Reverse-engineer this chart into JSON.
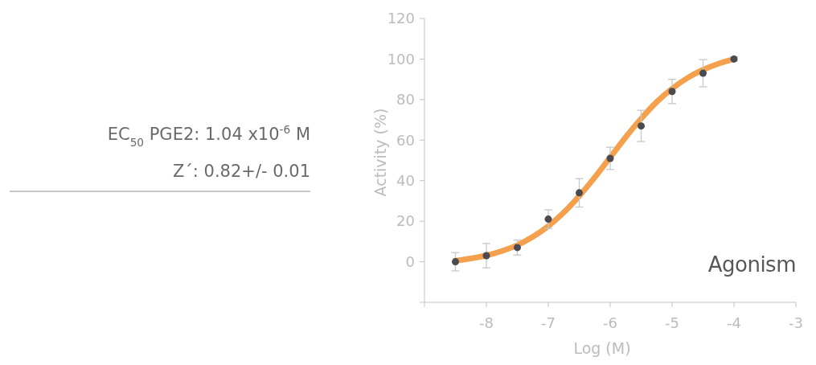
{
  "chart_data": {
    "type": "scatter",
    "xlabel": "Log (M)",
    "ylabel": "Activity (%)",
    "xlim": [
      -9,
      -3
    ],
    "xticks": [
      {
        "value": -9,
        "label": null
      },
      -8,
      -7,
      -6,
      -5,
      -4,
      -3
    ],
    "ylim": [
      -20,
      120
    ],
    "yticks": [
      {
        "value": -20,
        "label": null
      },
      0,
      20,
      40,
      60,
      80,
      100,
      120
    ],
    "grid": false,
    "marker": "circle",
    "annotations": [
      "EC$_{50}$ PGE2: 1.04 x10$^{-6}$ M",
      "Z´: 0.82+/- 0.01",
      "Agonism"
    ],
    "series": [
      {
        "type": "line",
        "color": "#f4a04c",
        "marker": "none",
        "line_style": "solid",
        "x": [
          -8.5,
          -8.25,
          -8,
          -7.75,
          -7.5,
          -7.25,
          -7,
          -6.75,
          -6.5,
          -6.25,
          -6,
          -5.75,
          -5.5,
          -5.25,
          -5,
          -4.75,
          -4.5,
          -4.25,
          -4
        ],
        "values": [
          0.5,
          1.6,
          3.1,
          5.3,
          8.2,
          12.3,
          17.6,
          24.3,
          32.4,
          41.6,
          51.5,
          61.4,
          70.6,
          78.8,
          85.4,
          90.7,
          94.7,
          97.7,
          99.9
        ]
      },
      {
        "color": "#4a4a50",
        "x": [
          -8.5,
          -8,
          -7.5,
          -7,
          -6.5,
          -6,
          -5.5,
          -5,
          -4.5,
          -4
        ],
        "values": [
          0,
          3,
          7,
          21,
          34,
          51,
          67,
          84,
          93,
          100
        ],
        "errors": [
          4.5,
          6,
          3.7,
          4.6,
          7,
          5.5,
          7.7,
          6,
          6.7,
          1
        ]
      }
    ]
  }
}
